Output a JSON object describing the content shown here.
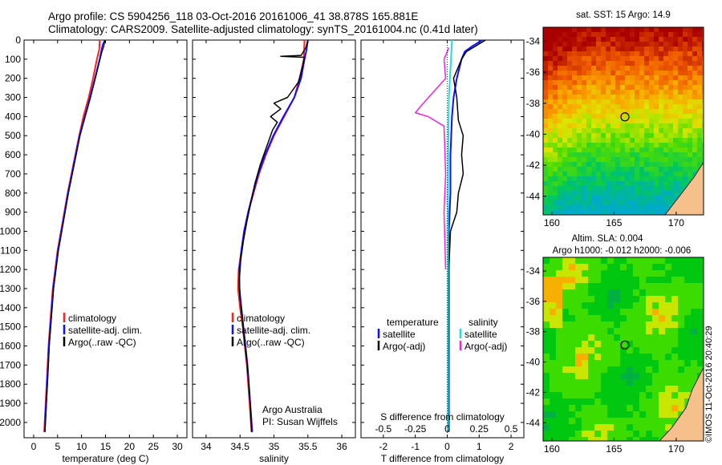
{
  "header": {
    "title_line1": "Argo profile: CS 5904256_118 03-Oct-2016 20161006_41 38.878S 165.881E",
    "title_line2": "Climatology: CARS2009. Satellite-adjusted climatology: synTS_20161004.nc (0.41d later)"
  },
  "stamp": "©IMOS 11-Oct-2016 20:40:29",
  "colors": {
    "climatology": "#ff2020",
    "satellite": "#1010ff",
    "argo": "#000000",
    "sal_satellite": "#22dddd",
    "sal_argo": "#ee22ee"
  },
  "depth_axis": {
    "ylim": [
      0,
      2080
    ],
    "ticks": [
      0,
      100,
      200,
      300,
      400,
      500,
      600,
      700,
      800,
      900,
      1000,
      1100,
      1200,
      1300,
      1400,
      1500,
      1600,
      1700,
      1800,
      1900,
      2000
    ]
  },
  "chart_data": [
    {
      "id": "temperature",
      "type": "line",
      "xlabel": "temperature (deg C)",
      "xlim": [
        -2,
        32
      ],
      "xticks": [
        0,
        5,
        10,
        15,
        20,
        25,
        30
      ],
      "legend": [
        "climatology",
        "satellite-adj. clim.",
        "Argo(..raw -QC)"
      ],
      "series": [
        {
          "name": "climatology",
          "color": "climatology",
          "width": 2,
          "points": [
            [
              13.8,
              0
            ],
            [
              13.7,
              50
            ],
            [
              13.2,
              100
            ],
            [
              12.4,
              200
            ],
            [
              11.5,
              300
            ],
            [
              10.4,
              400
            ],
            [
              9.5,
              500
            ],
            [
              8.7,
              600
            ],
            [
              7.9,
              700
            ],
            [
              7.1,
              800
            ],
            [
              6.4,
              900
            ],
            [
              5.7,
              1000
            ],
            [
              5.0,
              1100
            ],
            [
              4.5,
              1200
            ],
            [
              4.0,
              1300
            ],
            [
              3.7,
              1400
            ],
            [
              3.4,
              1500
            ],
            [
              3.1,
              1600
            ],
            [
              2.9,
              1700
            ],
            [
              2.7,
              1800
            ],
            [
              2.5,
              1900
            ],
            [
              2.3,
              2000
            ],
            [
              2.2,
              2050
            ]
          ]
        },
        {
          "name": "satellite-adj. clim.",
          "color": "satellite",
          "width": 2,
          "points": [
            [
              14.9,
              0
            ],
            [
              14.5,
              20
            ],
            [
              14.2,
              50
            ],
            [
              13.8,
              100
            ],
            [
              12.8,
              200
            ],
            [
              11.8,
              300
            ],
            [
              10.7,
              400
            ],
            [
              9.6,
              500
            ],
            [
              8.8,
              600
            ],
            [
              8.0,
              700
            ],
            [
              7.2,
              800
            ],
            [
              6.5,
              900
            ],
            [
              5.8,
              1000
            ],
            [
              5.1,
              1100
            ],
            [
              4.6,
              1200
            ],
            [
              4.1,
              1300
            ],
            [
              3.8,
              1400
            ],
            [
              3.5,
              1500
            ],
            [
              3.2,
              1600
            ],
            [
              3.0,
              1700
            ],
            [
              2.8,
              1800
            ],
            [
              2.6,
              1900
            ],
            [
              2.4,
              2000
            ],
            [
              2.3,
              2050
            ]
          ]
        },
        {
          "name": "Argo(..raw -QC)",
          "color": "argo",
          "width": 1,
          "points": [
            [
              14.9,
              0
            ],
            [
              14.7,
              30
            ],
            [
              14.3,
              60
            ],
            [
              13.9,
              100
            ],
            [
              12.9,
              200
            ],
            [
              11.9,
              300
            ],
            [
              10.8,
              400
            ],
            [
              9.7,
              500
            ],
            [
              8.9,
              600
            ],
            [
              8.1,
              700
            ],
            [
              7.3,
              800
            ],
            [
              6.6,
              900
            ],
            [
              5.9,
              1000
            ],
            [
              5.2,
              1100
            ],
            [
              4.7,
              1200
            ],
            [
              4.2,
              1300
            ],
            [
              3.9,
              1400
            ],
            [
              3.6,
              1500
            ],
            [
              3.3,
              1600
            ],
            [
              3.1,
              1700
            ],
            [
              2.9,
              1800
            ],
            [
              2.7,
              1900
            ],
            [
              2.5,
              2000
            ],
            [
              2.4,
              2050
            ]
          ]
        }
      ]
    },
    {
      "id": "salinity",
      "type": "line",
      "xlabel": "salinity",
      "xlim": [
        33.8,
        36.2
      ],
      "xticks": [
        34,
        34.5,
        35,
        35.5,
        36
      ],
      "legend": [
        "climatology",
        "satellite-adj. clim.",
        "Argo(..raw -QC)"
      ],
      "footnote": [
        "Argo Australia",
        "PI: Susan Wijffels"
      ],
      "series": [
        {
          "name": "climatology",
          "color": "climatology",
          "width": 2,
          "points": [
            [
              35.45,
              0
            ],
            [
              35.44,
              100
            ],
            [
              35.38,
              200
            ],
            [
              35.3,
              300
            ],
            [
              35.15,
              400
            ],
            [
              35.0,
              500
            ],
            [
              34.88,
              600
            ],
            [
              34.78,
              700
            ],
            [
              34.7,
              800
            ],
            [
              34.62,
              900
            ],
            [
              34.56,
              1000
            ],
            [
              34.52,
              1100
            ],
            [
              34.48,
              1200
            ],
            [
              34.47,
              1300
            ],
            [
              34.5,
              1400
            ],
            [
              34.54,
              1500
            ],
            [
              34.57,
              1600
            ],
            [
              34.6,
              1700
            ],
            [
              34.62,
              1800
            ],
            [
              34.64,
              1900
            ],
            [
              34.66,
              2000
            ],
            [
              34.67,
              2050
            ]
          ]
        },
        {
          "name": "satellite-adj. clim.",
          "color": "satellite",
          "width": 2,
          "points": [
            [
              35.5,
              0
            ],
            [
              35.48,
              50
            ],
            [
              35.45,
              100
            ],
            [
              35.4,
              200
            ],
            [
              35.3,
              300
            ],
            [
              35.14,
              400
            ],
            [
              34.99,
              500
            ],
            [
              34.87,
              600
            ],
            [
              34.77,
              700
            ],
            [
              34.69,
              800
            ],
            [
              34.62,
              900
            ],
            [
              34.56,
              1000
            ],
            [
              34.52,
              1100
            ],
            [
              34.49,
              1200
            ],
            [
              34.49,
              1300
            ],
            [
              34.52,
              1400
            ],
            [
              34.55,
              1500
            ],
            [
              34.58,
              1600
            ],
            [
              34.61,
              1700
            ],
            [
              34.63,
              1800
            ],
            [
              34.65,
              1900
            ],
            [
              34.67,
              2000
            ],
            [
              34.68,
              2050
            ]
          ]
        },
        {
          "name": "Argo(..raw -QC)",
          "color": "argo",
          "width": 1.5,
          "points": [
            [
              35.5,
              0
            ],
            [
              35.47,
              40
            ],
            [
              35.4,
              80
            ],
            [
              35.1,
              85
            ],
            [
              35.45,
              90
            ],
            [
              35.42,
              140
            ],
            [
              35.36,
              220
            ],
            [
              35.2,
              300
            ],
            [
              35.0,
              330
            ],
            [
              35.1,
              360
            ],
            [
              34.95,
              400
            ],
            [
              35.05,
              430
            ],
            [
              34.98,
              470
            ],
            [
              34.9,
              550
            ],
            [
              34.8,
              650
            ],
            [
              34.72,
              750
            ],
            [
              34.66,
              850
            ],
            [
              34.6,
              950
            ],
            [
              34.55,
              1050
            ],
            [
              34.51,
              1150
            ],
            [
              34.49,
              1250
            ],
            [
              34.5,
              1350
            ],
            [
              34.53,
              1450
            ],
            [
              34.56,
              1550
            ],
            [
              34.59,
              1650
            ],
            [
              34.62,
              1750
            ],
            [
              34.64,
              1850
            ],
            [
              34.66,
              1950
            ],
            [
              34.67,
              2050
            ]
          ]
        }
      ]
    },
    {
      "id": "difference",
      "type": "line",
      "xlabel": "T difference from climatology",
      "xlabel_top": "S difference from climatology",
      "xlim": [
        -2.7,
        2.4
      ],
      "xticks": [
        -2,
        -1,
        0,
        1,
        2
      ],
      "s_xlim": [
        -0.675,
        0.6
      ],
      "s_xticks": [
        -0.5,
        -0.25,
        0,
        0.25,
        0.5
      ],
      "legend_t": [
        "temperature",
        "satellite",
        "Argo(-adj)"
      ],
      "legend_s": [
        "salinity",
        "satellite",
        "Argo(-adj)"
      ],
      "series": [
        {
          "name": "satellite",
          "color": "satellite",
          "width": 2,
          "points": [
            [
              1.1,
              0
            ],
            [
              0.8,
              30
            ],
            [
              0.55,
              60
            ],
            [
              0.45,
              100
            ],
            [
              0.3,
              200
            ],
            [
              0.2,
              300
            ],
            [
              0.15,
              400
            ],
            [
              0.1,
              600
            ],
            [
              0.1,
              800
            ],
            [
              0.05,
              1000
            ],
            [
              0.05,
              1200
            ],
            [
              0.05,
              1400
            ],
            [
              0.05,
              1600
            ],
            [
              0.05,
              1800
            ],
            [
              0.05,
              2000
            ],
            [
              0.05,
              2050
            ]
          ]
        },
        {
          "name": "Argo(-adj)",
          "color": "argo",
          "width": 1.5,
          "points": [
            [
              1.2,
              0
            ],
            [
              0.9,
              30
            ],
            [
              0.6,
              60
            ],
            [
              0.45,
              100
            ],
            [
              0.2,
              200
            ],
            [
              0.3,
              300
            ],
            [
              0.35,
              420
            ],
            [
              0.5,
              500
            ],
            [
              0.45,
              600
            ],
            [
              0.5,
              700
            ],
            [
              0.35,
              800
            ],
            [
              0.3,
              900
            ],
            [
              0.1,
              1000
            ],
            [
              0.05,
              1200
            ],
            [
              0.05,
              1500
            ],
            [
              0.03,
              2050
            ]
          ]
        },
        {
          "name": "salinity satellite",
          "color": "sal_satellite",
          "width": 2,
          "points": [
            [
              0.15,
              0
            ],
            [
              0.12,
              100
            ],
            [
              0.05,
              300
            ],
            [
              0.03,
              600
            ],
            [
              0.02,
              1000
            ],
            [
              0.02,
              1400
            ],
            [
              0.02,
              2050
            ]
          ]
        },
        {
          "name": "salinity Argo(-adj)",
          "color": "sal_argo",
          "width": 1.5,
          "points": [
            [
              0.05,
              40
            ],
            [
              -0.1,
              100
            ],
            [
              -0.05,
              200
            ],
            [
              -0.8,
              340
            ],
            [
              -1.0,
              380
            ],
            [
              -0.6,
              400
            ],
            [
              -0.1,
              450
            ],
            [
              -0.05,
              700
            ],
            [
              -0.1,
              900
            ],
            [
              -0.05,
              1200
            ]
          ]
        }
      ]
    }
  ],
  "maps": [
    {
      "id": "sst",
      "title": "sat. SST: 15 Argo: 14.9",
      "xticks": [
        160,
        165,
        170
      ],
      "yticks": [
        -34,
        -36,
        -38,
        -40,
        -42,
        -44
      ],
      "xlim": [
        159.3,
        172.2
      ],
      "ylim": [
        -45.2,
        -33.1
      ],
      "marker": [
        165.88,
        -38.88
      ]
    },
    {
      "id": "sla",
      "title": "Altim. SLA: 0.004",
      "subtitle": "Argo h1000: -0.012 h2000: -0.006",
      "xticks": [
        160,
        165,
        170
      ],
      "yticks": [
        -34,
        -36,
        -38,
        -40,
        -42,
        -44
      ],
      "xlim": [
        159.3,
        172.2
      ],
      "ylim": [
        -45.2,
        -33.1
      ],
      "marker": [
        165.88,
        -38.88
      ]
    }
  ]
}
